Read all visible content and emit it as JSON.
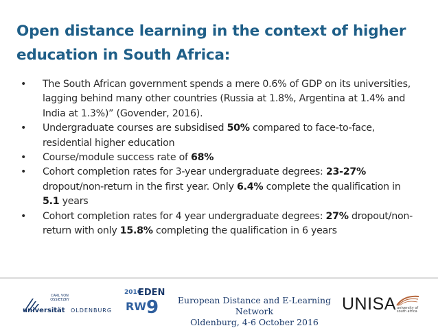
{
  "slide": {
    "title_line1": "Open distance learning in the context of higher",
    "title_line2": "education in South Africa:",
    "bullet_symbol": "•",
    "bullets": [
      {
        "parts": [
          {
            "text": "The South African government spends a mere 0.6% of GDP on its universities, lagging behind many other countries (Russia at 1.8%, Argentina at 1.4% and India at 1.3%)” (Govender, 2016).",
            "bold": false
          }
        ]
      },
      {
        "parts": [
          {
            "text": "Undergraduate courses are subsidised ",
            "bold": false
          },
          {
            "text": "50%",
            "bold": true
          },
          {
            "text": " compared to face-to-face, residential higher education",
            "bold": false
          }
        ]
      },
      {
        "parts": [
          {
            "text": "Course/module success rate of ",
            "bold": false
          },
          {
            "text": "68%",
            "bold": true
          }
        ]
      },
      {
        "parts": [
          {
            "text": "Cohort completion rates for 3-year undergraduate degrees: ",
            "bold": false
          },
          {
            "text": "23-27%",
            "bold": true
          },
          {
            "text": " dropout/non-return in the first year. Only ",
            "bold": false
          },
          {
            "text": "6.4%",
            "bold": true
          },
          {
            "text": " complete the qualification in ",
            "bold": false
          },
          {
            "text": "5.1",
            "bold": true
          },
          {
            "text": " years",
            "bold": false
          }
        ]
      },
      {
        "parts": [
          {
            "text": "Cohort completion rates for 4 year undergraduate degrees: ",
            "bold": false
          },
          {
            "text": "27%",
            "bold": true
          },
          {
            "text": " dropout/non-return with only ",
            "bold": false
          },
          {
            "text": "15.8%",
            "bold": true
          },
          {
            "text": " completing the qualification in 6 years",
            "bold": false
          }
        ]
      }
    ]
  },
  "footer": {
    "oldenburg_logo": {
      "small_text": "CARL VON OSSIETZKY",
      "name": "universität",
      "city": "OLDENBURG"
    },
    "eden_logo": {
      "year": "2016",
      "name": "EDEN",
      "rw": "RW",
      "number": "9"
    },
    "conference_line1": "European Distance and E-Learning Network",
    "conference_line2": "Oldenburg, 4-6 October 2016",
    "unisa_logo": {
      "name": "UNISA",
      "tagline": "university of south africa"
    }
  },
  "colors": {
    "title": "#1f5f88",
    "body_text": "#2a2a2a",
    "logo_blue": "#1b3a6b",
    "unisa_swoosh": "#b5653a"
  }
}
